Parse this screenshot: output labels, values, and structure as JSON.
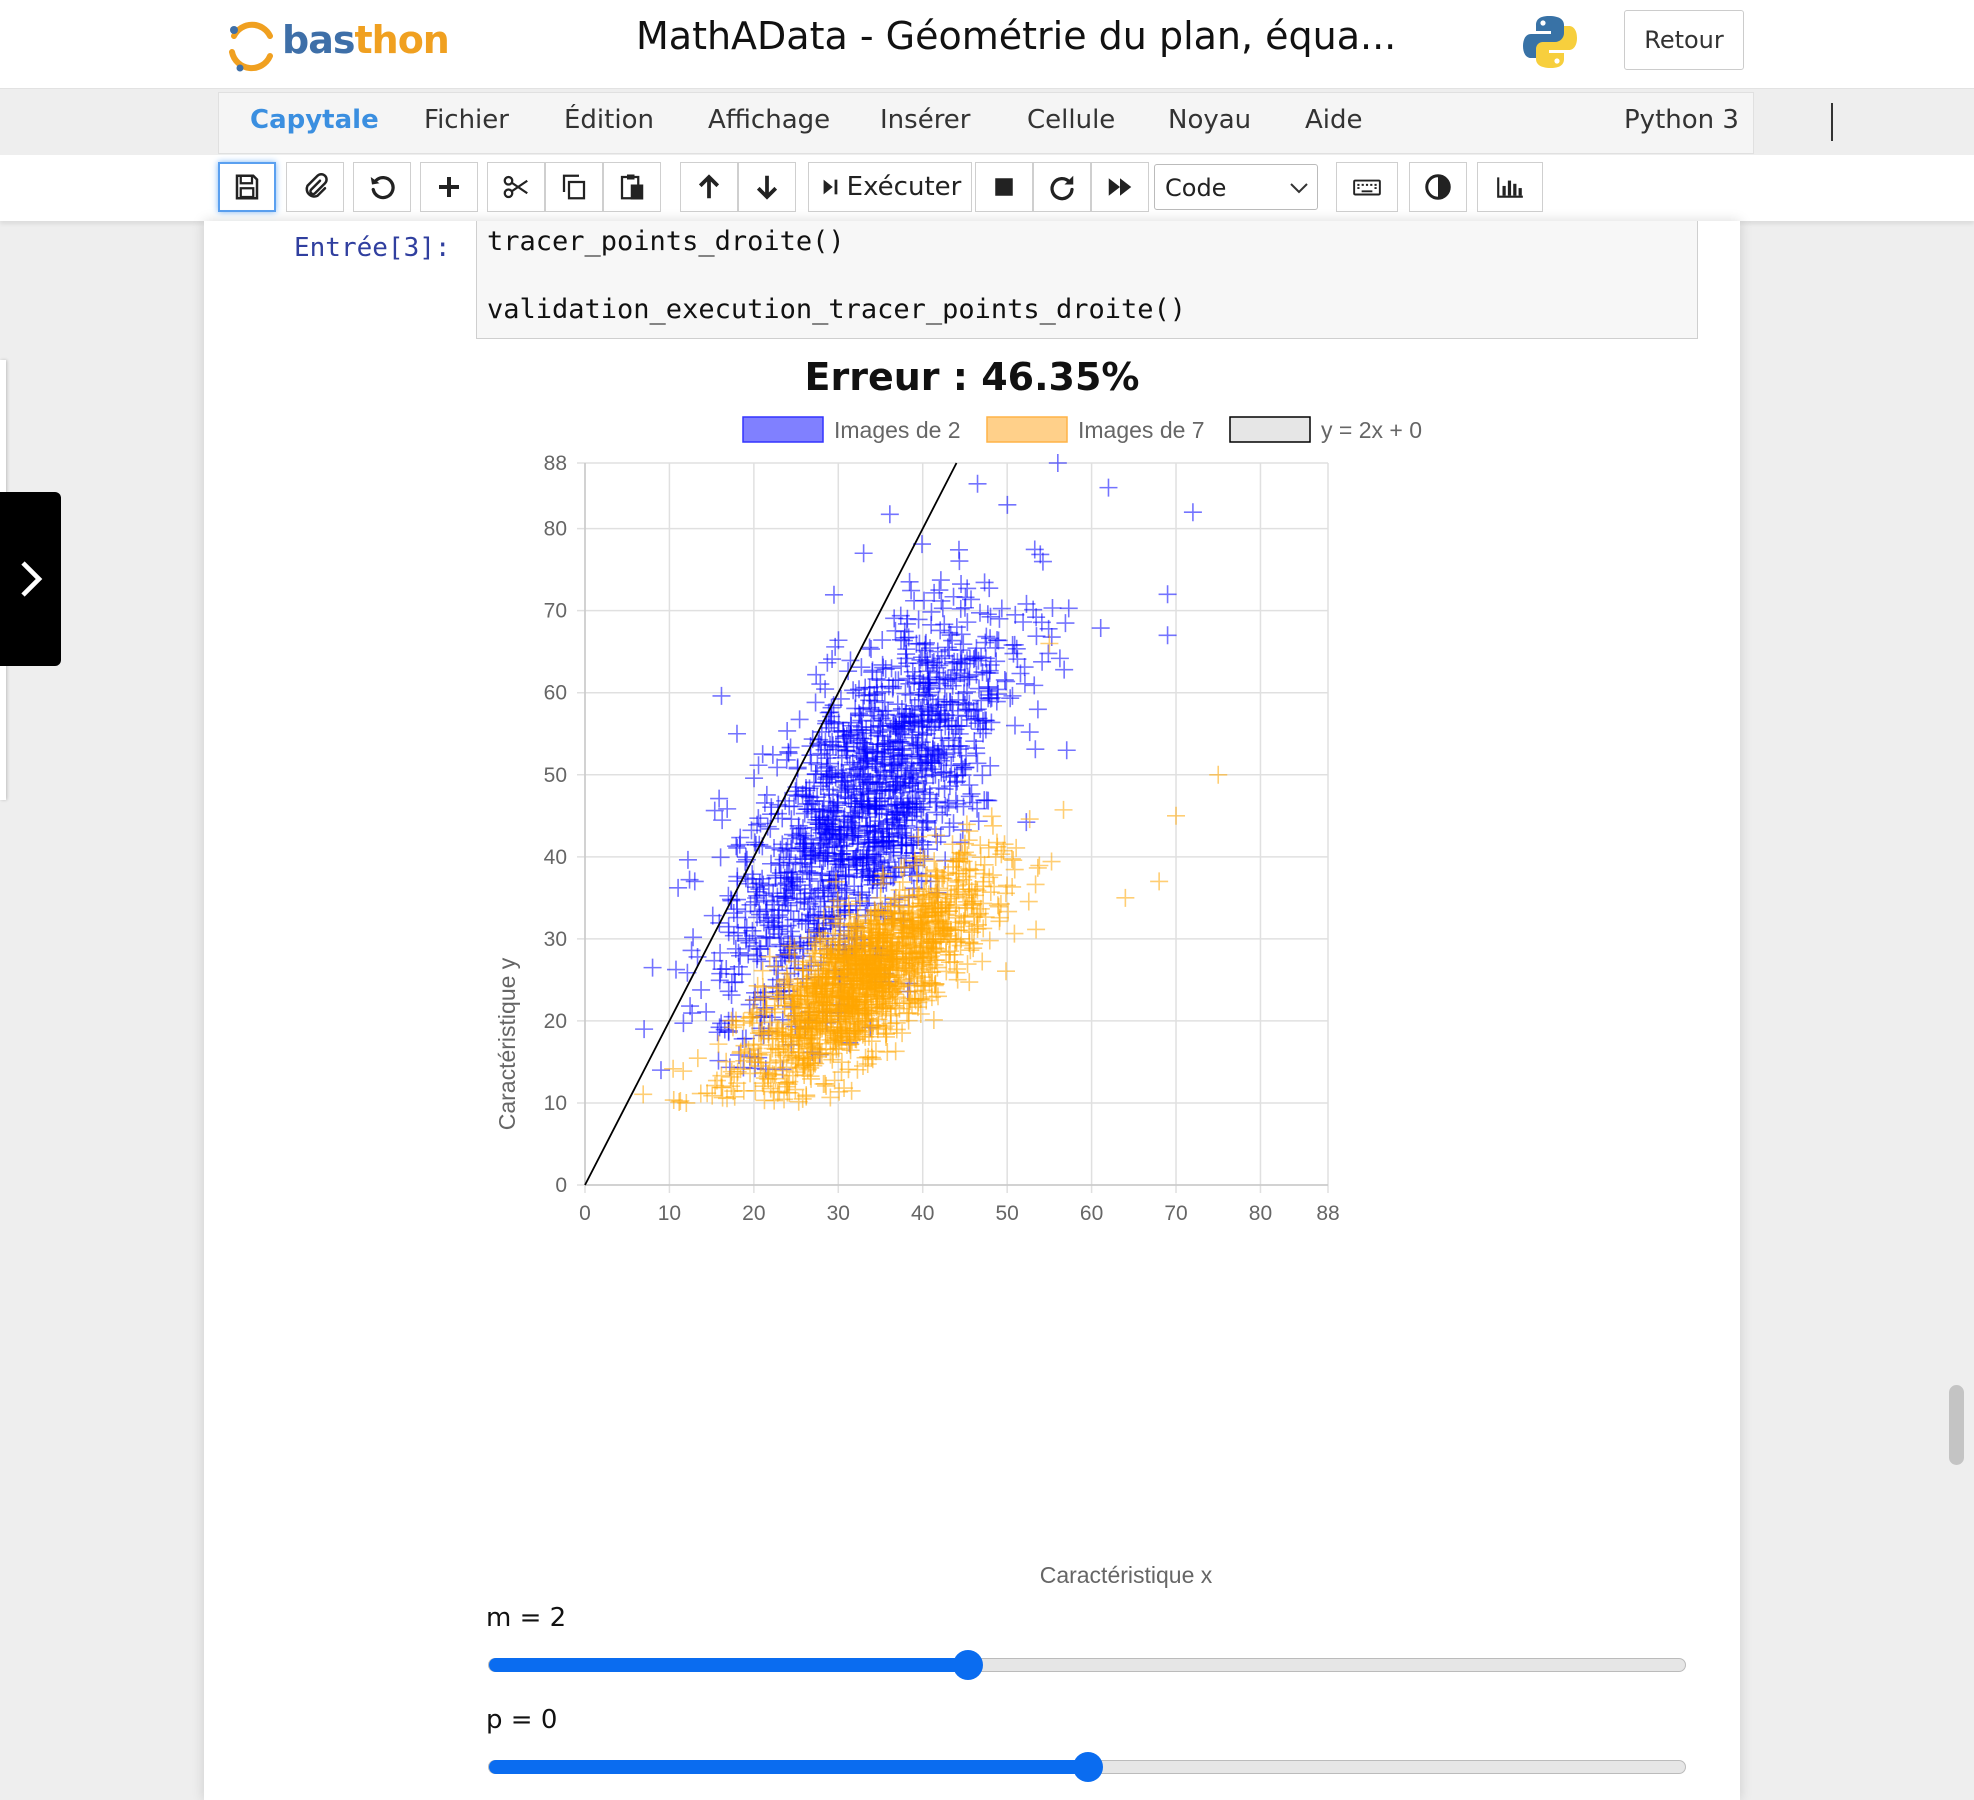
{
  "header": {
    "logo_text_a": "bas",
    "logo_text_b": "th",
    "logo_text_c": "on",
    "title": "MathAData - Géométrie du plan, équa...",
    "back_button": "Retour"
  },
  "menubar": {
    "items": [
      "Capytale",
      "Fichier",
      "Édition",
      "Affichage",
      "Insérer",
      "Cellule",
      "Noyau",
      "Aide"
    ],
    "kernel": "Python 3"
  },
  "toolbar": {
    "run_label": "Exécuter",
    "cell_type": "Code",
    "icons": [
      "save-icon",
      "paperclip-icon",
      "undo-icon",
      "plus-icon",
      "scissors-icon",
      "copy-icon",
      "paste-icon",
      "arrow-up-icon",
      "arrow-down-icon",
      "run-icon",
      "stop-icon",
      "restart-icon",
      "fast-forward-icon",
      "keyboard-icon",
      "contrast-icon",
      "bar-chart-icon"
    ]
  },
  "cell": {
    "prompt": "Entrée[3]:",
    "code_lines": [
      "tracer_points_droite()",
      "",
      "validation_execution_tracer_points_droite()"
    ]
  },
  "chart_data": {
    "type": "scatter",
    "title": "Erreur : 46.35%",
    "xlabel": "Caractéristique x",
    "ylabel": "Caractéristique y",
    "xlim": [
      0,
      88
    ],
    "ylim": [
      0,
      88
    ],
    "xticks": [
      0,
      10,
      20,
      30,
      40,
      50,
      60,
      70,
      80,
      88
    ],
    "yticks": [
      0,
      10,
      20,
      30,
      40,
      50,
      60,
      70,
      80,
      88
    ],
    "grid": true,
    "legend_position": "top",
    "marker": "plus",
    "series": [
      {
        "name": "Images de 2",
        "color": "#0000ff",
        "distribution": {
          "x_mean": 33,
          "x_sd": 8.5,
          "y_mean": 46,
          "y_sd": 13,
          "correlation": 0.72,
          "count": 1500
        },
        "outliers": [
          [
            56,
            88
          ],
          [
            62,
            85
          ],
          [
            72,
            82
          ],
          [
            33,
            77
          ],
          [
            69,
            72
          ],
          [
            69,
            67
          ],
          [
            13,
            37
          ],
          [
            7,
            19
          ],
          [
            9,
            14
          ],
          [
            18,
            55
          ]
        ]
      },
      {
        "name": "Images de 7",
        "color": "#ffa500",
        "distribution": {
          "x_mean": 33,
          "x_sd": 7.5,
          "y_mean": 25,
          "y_sd": 7,
          "correlation": 0.78,
          "count": 1500
        },
        "outliers": [
          [
            75,
            50
          ],
          [
            70,
            45
          ],
          [
            68,
            37
          ],
          [
            64,
            35
          ],
          [
            12,
            10
          ],
          [
            55,
            66
          ]
        ]
      },
      {
        "name": "y = 2x + 0",
        "color": "#000000",
        "type": "line",
        "m": 2,
        "p": 0
      }
    ]
  },
  "sliders": [
    {
      "label": "m = 2",
      "value": 2,
      "min": -2,
      "max": 8
    },
    {
      "label": "p = 0",
      "value": 0,
      "min": -50,
      "max": 50
    }
  ],
  "colors": {
    "brand": "#3b8fe0",
    "prompt": "#303f9f",
    "slider": "#0a6cf0"
  }
}
